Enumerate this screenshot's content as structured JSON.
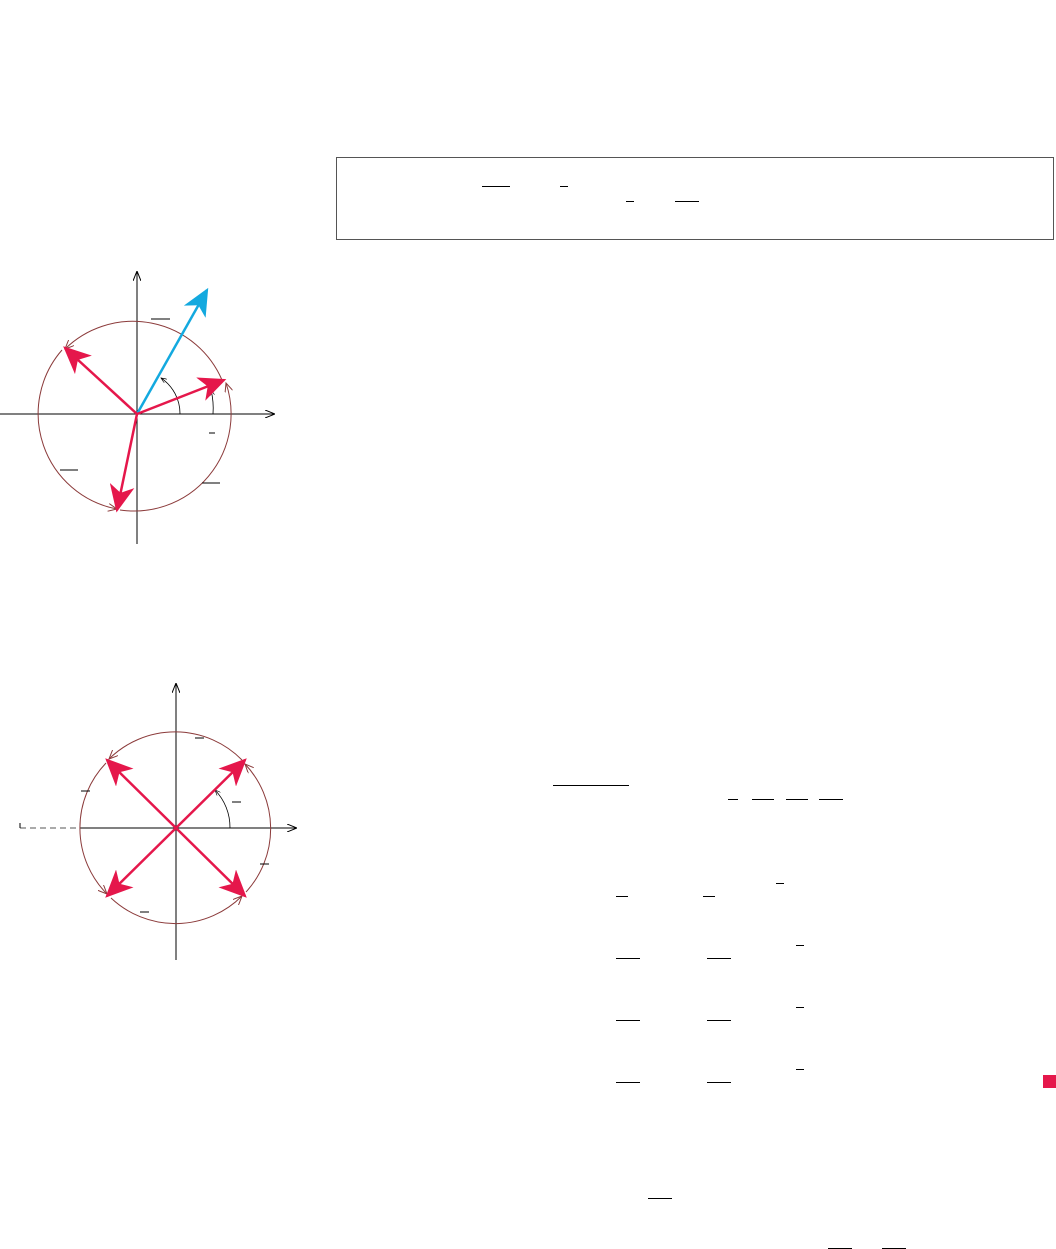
{
  "colors": {
    "vector_red": "#e5174b",
    "vector_blue": "#13a9df",
    "arc_brown": "#8b3a3a",
    "axis": "#000000",
    "end_marker": "#e5174b"
  },
  "figure_top": {
    "vector_count": 3,
    "highlight_vector": "blue",
    "arc_count": 3
  },
  "figure_bottom": {
    "vector_count": 4,
    "arc_count": 4,
    "dashed_extension": true
  },
  "end_marker": {
    "icon": "end-of-proof-square-icon"
  }
}
